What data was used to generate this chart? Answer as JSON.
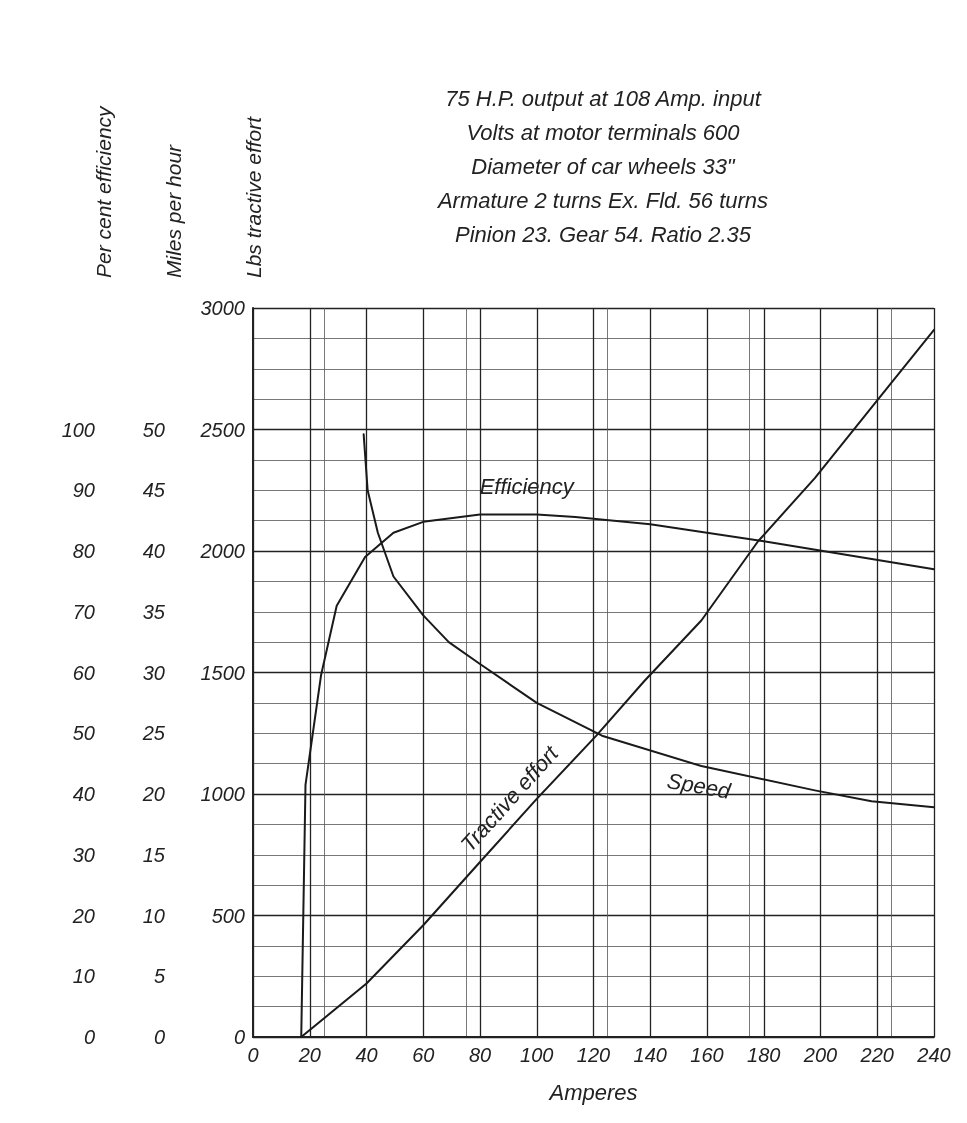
{
  "chart_data": {
    "type": "line",
    "title": "75 H.P. output at 108 Amp. input\nVolts at motor terminals 600\nDiameter of car wheels 33\"\nArmature 2 turns Ex. Fld. 56 turns\nPinion 23. Gear 54. Ratio 2.35",
    "xlabel": "Amperes",
    "ylabel": "Lbs tractive effort",
    "y2label": "Miles per hour",
    "y3label": "Per cent efficiency",
    "xlim": [
      0,
      240
    ],
    "xticks": [
      0,
      20,
      40,
      60,
      80,
      100,
      120,
      140,
      160,
      180,
      200,
      220,
      240
    ],
    "ylim": [
      0,
      3000
    ],
    "yticks": [
      0,
      500,
      1000,
      1500,
      2000,
      2500,
      3000
    ],
    "y2lim": [
      0,
      60
    ],
    "y2ticks": [
      0,
      5,
      10,
      15,
      20,
      25,
      30,
      35,
      40,
      45,
      50
    ],
    "y3lim": [
      0,
      120
    ],
    "y3ticks": [
      0,
      10,
      20,
      30,
      40,
      50,
      60,
      70,
      80,
      90,
      100
    ],
    "grid": true,
    "legend": false,
    "marker": "none",
    "line_style": "solid",
    "series": [
      {
        "name": "Tractive effort",
        "axis": "y",
        "color": "#1a1a1a",
        "x": [
          17,
          40,
          60,
          80,
          100,
          121,
          138,
          158,
          178,
          198,
          219,
          240
        ],
        "values": [
          0,
          220,
          460,
          720,
          980,
          1240,
          1466,
          1714,
          2040,
          2300,
          2605,
          2910
        ]
      },
      {
        "name": "Speed",
        "axis": "y2",
        "color": "#1a1a1a",
        "x": [
          39,
          40.4,
          44,
          49.5,
          60,
          69,
          80,
          100,
          123,
          158,
          198,
          218,
          240
        ],
        "values": [
          49.6,
          45,
          41.5,
          37.9,
          34.7,
          32.5,
          30.7,
          27.5,
          24.8,
          22.3,
          20.3,
          19.4,
          18.9
        ]
      },
      {
        "name": "Efficiency",
        "axis": "y3",
        "color": "#1a1a1a",
        "x": [
          17,
          18.5,
          24,
          29.5,
          39.5,
          49.5,
          60,
          80,
          100,
          113.6,
          140,
          180,
          240
        ],
        "values": [
          0,
          41.5,
          59.6,
          71,
          79,
          83,
          84.8,
          86,
          86,
          85.6,
          84.4,
          81.6,
          77
        ]
      }
    ]
  }
}
